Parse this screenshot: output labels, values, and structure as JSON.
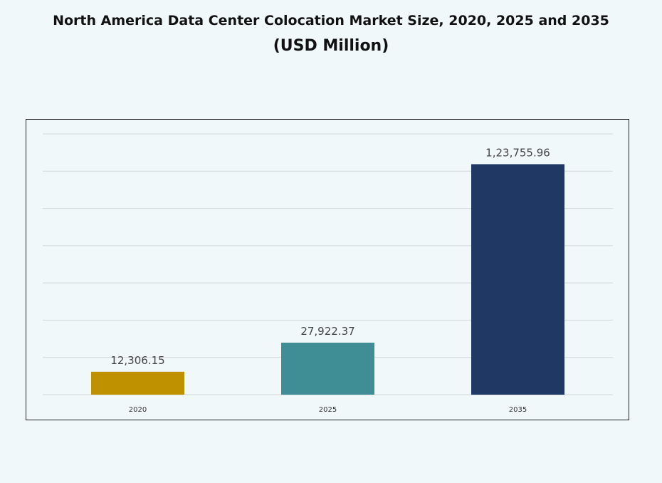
{
  "chart_data": {
    "type": "bar",
    "title": "North America Data Center Colocation Market Size, 2020, 2025 and 2035",
    "subtitle": "(USD Million)",
    "categories": [
      "2020",
      "2025",
      "2035"
    ],
    "values": [
      12306.15,
      27922.37,
      123755.96
    ],
    "data_labels": [
      "12,306.15",
      "27,922.37",
      "1,23,755.96"
    ],
    "colors": [
      "#bf9000",
      "#3f8e96",
      "#1f3864"
    ],
    "xlabel": "",
    "ylabel": "",
    "ylim": [
      0,
      140000
    ],
    "grid": true,
    "legend": "none"
  }
}
